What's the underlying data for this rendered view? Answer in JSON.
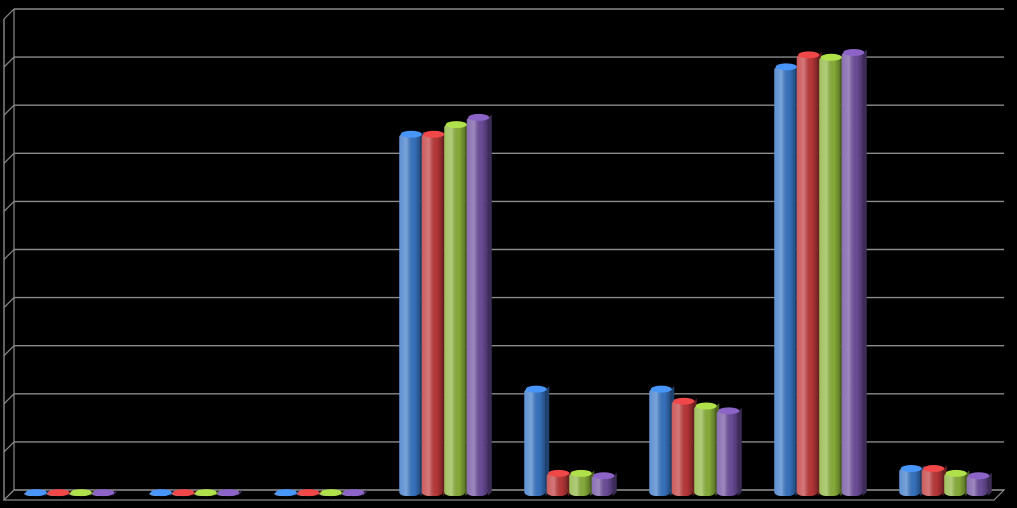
{
  "chart_data": {
    "type": "bar",
    "title": "",
    "xlabel": "",
    "ylabel": "",
    "categories": [
      "",
      "",
      "",
      "",
      "",
      "",
      "",
      ""
    ],
    "ylim": [
      0,
      100
    ],
    "grid": true,
    "legend": "none",
    "series": [
      {
        "color": "#3A78C8",
        "values": [
          0.5,
          0.5,
          0.5,
          75,
          22,
          22,
          89,
          5.5
        ]
      },
      {
        "color": "#C0393A",
        "values": [
          0.5,
          0.5,
          0.5,
          75,
          4.5,
          19.5,
          91.5,
          5.5
        ]
      },
      {
        "color": "#8DB43C",
        "values": [
          0.5,
          0.5,
          0.5,
          77,
          4.5,
          18.5,
          91,
          4.5
        ]
      },
      {
        "color": "#7050A0",
        "values": [
          0.5,
          0.5,
          0.5,
          78.5,
          4,
          17.5,
          92,
          4
        ]
      }
    ]
  }
}
